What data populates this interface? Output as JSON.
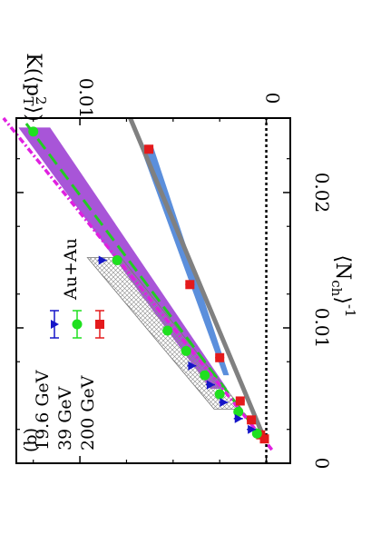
{
  "chart_data": {
    "type": "line",
    "panel_label": "(b)",
    "annotation": "Au+Au",
    "xlabel": "⟨N",
    "xlabel_sub": "ch",
    "xlabel_sup": "-1",
    "xlabel_close": "⟩",
    "ylabel": "K(⟨p",
    "ylabel_sub": "T",
    "ylabel_sup": "2",
    "ylabel_close": "⟩)",
    "x_ticks": [
      "0",
      "0.01",
      "0.02"
    ],
    "y_ticks": [
      "0",
      "0.01"
    ],
    "xlim": [
      0,
      0.0255
    ],
    "ylim": [
      -0.0008,
      0.0138
    ],
    "zero_line": true,
    "series": [
      {
        "name": "200 GeV",
        "color": "#e41a1c",
        "marker": "square",
        "x": [
          0.0018,
          0.0021,
          0.0032,
          0.0046,
          0.0078,
          0.0132,
          0.0232
        ],
        "y": [
          0.0001,
          0.0003,
          0.0008,
          0.0014,
          0.0025,
          0.0041,
          0.0063
        ],
        "fit": {
          "color": "#808080",
          "x": [
            0.0018,
            0.0255
          ],
          "y": [
            0.0001,
            0.0073
          ]
        },
        "band": {
          "color": "#5b8fdc",
          "x": [
            0.0065,
            0.0235
          ],
          "y_low": [
            0.002,
            0.0061
          ],
          "y_high": [
            0.0023,
            0.0068
          ]
        }
      },
      {
        "name": "39 GeV",
        "color": "#1fe01f",
        "marker": "circle",
        "x": [
          0.0022,
          0.0038,
          0.0051,
          0.0065,
          0.0083,
          0.0098,
          0.015,
          0.0245
        ],
        "y": [
          0.0005,
          0.0015,
          0.0025,
          0.0033,
          0.0043,
          0.0053,
          0.008,
          0.0125
        ],
        "fit": {
          "color": "#22cc22",
          "x": [
            0.0018,
            0.0255
          ],
          "y": [
            0.0002,
            0.0131
          ]
        },
        "band": {
          "color": "#a855d8",
          "x": [
            0.0055,
            0.0248
          ],
          "y_low": [
            0.0021,
            0.0116
          ],
          "y_high": [
            0.003,
            0.0133
          ]
        }
      },
      {
        "name": "19.6 GeV",
        "color": "#1515c8",
        "marker": "triangle",
        "x": [
          0.0025,
          0.0033,
          0.0045,
          0.0058,
          0.0072,
          0.015
        ],
        "y": [
          0.0008,
          0.0015,
          0.0023,
          0.003,
          0.004,
          0.0088
        ],
        "fit": {
          "color": "#e020e0",
          "x": [
            0.001,
            0.0255
          ],
          "y": [
            -0.0003,
            0.0141
          ]
        },
        "band": {
          "color": "#999999",
          "x": [
            0.004,
            0.0152
          ],
          "y_low": [
            0.0013,
            0.0078
          ],
          "y_high": [
            0.0028,
            0.0096
          ]
        }
      }
    ]
  }
}
